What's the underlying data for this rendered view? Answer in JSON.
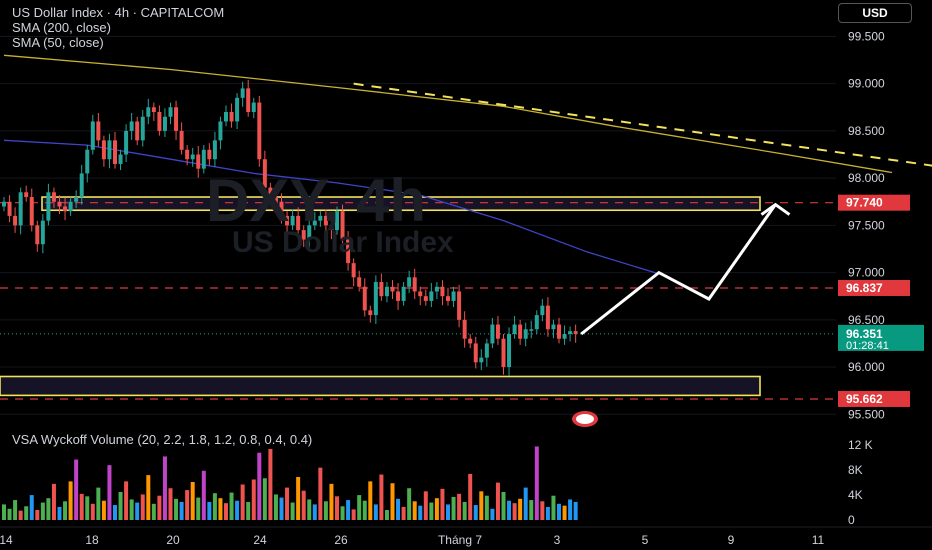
{
  "header": {
    "symbol_line": "US Dollar Index · 4h · CAPITALCOM",
    "indicator_1": "SMA (200, close)",
    "indicator_2": "SMA (50, close)",
    "currency_button": "USD"
  },
  "watermark": {
    "ticker": "DXY, 4h",
    "name": "US Dollar Index"
  },
  "volume_panel": {
    "label": "VSA Wyckoff Volume (20, 2.2, 1.8, 1.2, 0.8, 0.4, 0.4)"
  },
  "colors": {
    "background": "#000000",
    "up_candle": "#26a69a",
    "down_candle": "#ef5350",
    "sma200": "#c9b233",
    "sma50": "#3f44c8",
    "zone": "#f2e35b",
    "level_line": "#e0383c",
    "current_price_badge": "#089981",
    "projection_arrow": "#ffffff"
  },
  "chart_data": [
    {
      "type": "candlestick",
      "symbol": "US Dollar Index",
      "timeframe": "4h",
      "ylim": [
        95.45,
        99.6
      ],
      "y_ticks": [
        "99.500",
        "99.000",
        "98.500",
        "98.000",
        "97.500",
        "97.000",
        "96.500",
        "96.000",
        "95.500"
      ],
      "x_ticks": [
        "14",
        "18",
        "20",
        "24",
        "26",
        "Tháng 7",
        "3",
        "5",
        "9",
        "11"
      ],
      "price_labels": [
        {
          "value": "97.740",
          "kind": "level"
        },
        {
          "value": "96.837",
          "kind": "level"
        },
        {
          "value": "96.351",
          "kind": "current",
          "countdown": "01:28:41"
        },
        {
          "value": "95.662",
          "kind": "level"
        }
      ],
      "levels": [
        97.74,
        96.837,
        95.662
      ],
      "zones": [
        {
          "from": 97.66,
          "to": 97.8
        },
        {
          "from": 95.7,
          "to": 95.9
        }
      ],
      "current_price": 96.351,
      "closes": [
        97.75,
        97.6,
        97.5,
        97.85,
        97.8,
        97.5,
        97.3,
        97.55,
        97.85,
        97.75,
        97.7,
        97.65,
        97.75,
        97.8,
        98.05,
        98.3,
        98.6,
        98.4,
        98.2,
        98.4,
        98.15,
        98.25,
        98.5,
        98.6,
        98.4,
        98.65,
        98.75,
        98.7,
        98.5,
        98.65,
        98.75,
        98.5,
        98.3,
        98.2,
        98.25,
        98.1,
        98.3,
        98.2,
        98.4,
        98.6,
        98.7,
        98.6,
        98.85,
        98.95,
        98.7,
        98.8,
        98.2,
        97.9,
        97.8,
        97.75,
        97.6,
        97.5,
        97.6,
        97.45,
        97.35,
        97.5,
        97.55,
        97.6,
        97.5,
        97.45,
        97.65,
        97.35,
        97.1,
        96.95,
        96.85,
        96.6,
        96.55,
        96.9,
        96.75,
        96.85,
        96.8,
        96.7,
        96.85,
        96.95,
        96.8,
        96.75,
        96.7,
        96.8,
        96.85,
        96.75,
        96.7,
        96.8,
        96.5,
        96.3,
        96.25,
        96.05,
        96.1,
        96.25,
        96.45,
        96.3,
        96.0,
        96.35,
        96.45,
        96.3,
        96.4,
        96.4,
        96.55,
        96.65,
        96.4,
        96.45,
        96.3,
        96.35,
        96.38,
        96.351
      ],
      "sma200": [
        [
          0,
          99.3
        ],
        [
          30,
          99.15
        ],
        [
          60,
          98.96
        ],
        [
          90,
          98.76
        ],
        [
          110,
          98.55
        ],
        [
          140,
          98.26
        ],
        [
          160,
          98.06
        ]
      ],
      "sma50": [
        [
          0,
          98.4
        ],
        [
          15,
          98.35
        ],
        [
          30,
          98.2
        ],
        [
          45,
          98.05
        ],
        [
          60,
          97.95
        ],
        [
          75,
          97.82
        ],
        [
          90,
          97.55
        ],
        [
          105,
          97.22
        ],
        [
          120,
          96.95
        ]
      ],
      "trendline": [
        [
          63,
          99.0
        ],
        [
          215,
          97.76
        ]
      ],
      "projection": [
        [
          104,
          96.35
        ],
        [
          118,
          97.0
        ],
        [
          127,
          96.72
        ],
        [
          139,
          97.72
        ]
      ],
      "volume_ylim": [
        0,
        13000
      ],
      "volume_y_ticks": [
        "12 K",
        "8K",
        "4K",
        "0"
      ],
      "volumes": [
        2500,
        1800,
        3200,
        1500,
        2200,
        4000,
        1600,
        2800,
        3500,
        5800,
        2100,
        3000,
        6200,
        9700,
        4200,
        3800,
        2600,
        5200,
        3100,
        8800,
        2400,
        4500,
        6200,
        3300,
        2800,
        4100,
        7200,
        2600,
        3900,
        10200,
        5100,
        3400,
        2900,
        4800,
        6100,
        3600,
        7900,
        2900,
        4300,
        3500,
        2700,
        4400,
        3100,
        5700,
        2900,
        6500,
        10800,
        6700,
        11400,
        4100,
        3600,
        5200,
        2800,
        6900,
        4700,
        3300,
        2500,
        8400,
        3000,
        5800,
        3800,
        2200,
        3200,
        1700,
        4000,
        3100,
        6200,
        2500,
        7300,
        1600,
        5900,
        3400,
        2100,
        5100,
        3000,
        2300,
        4600,
        2800,
        3500,
        5000,
        2500,
        3700,
        4200,
        2900,
        7400,
        2400,
        4600,
        3900,
        1800,
        6000,
        4500,
        3100,
        2700,
        3400,
        5200,
        3200,
        11800,
        3000,
        2100,
        3900,
        2600,
        2300,
        3300,
        2900
      ],
      "volume_colors": [
        "green",
        "green",
        "green",
        "red",
        "green",
        "blue",
        "red",
        "green",
        "green",
        "red",
        "blue",
        "green",
        "orange",
        "purple",
        "red",
        "green",
        "red",
        "green",
        "orange",
        "purple",
        "blue",
        "green",
        "red",
        "green",
        "blue",
        "red",
        "orange",
        "green",
        "red",
        "purple",
        "red",
        "green",
        "blue",
        "red",
        "orange",
        "green",
        "purple",
        "blue",
        "green",
        "orange",
        "red",
        "green",
        "blue",
        "red",
        "green",
        "red",
        "purple",
        "green",
        "red",
        "green",
        "blue",
        "red",
        "green",
        "orange",
        "red",
        "green",
        "blue",
        "red",
        "green",
        "orange",
        "red",
        "green",
        "blue",
        "red",
        "green",
        "green",
        "orange",
        "blue",
        "red",
        "green",
        "orange",
        "blue",
        "red",
        "green",
        "orange",
        "blue",
        "red",
        "green",
        "orange",
        "red",
        "blue",
        "green",
        "red",
        "green",
        "red",
        "blue",
        "orange",
        "green",
        "blue",
        "red",
        "green",
        "blue",
        "red",
        "orange",
        "blue",
        "green",
        "purple",
        "red",
        "blue",
        "green",
        "blue",
        "orange",
        "blue",
        "blue"
      ]
    }
  ]
}
